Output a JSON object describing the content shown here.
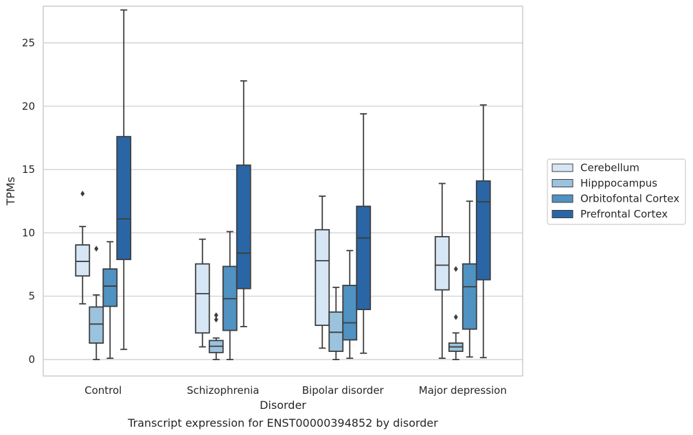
{
  "chart_data": {
    "type": "box",
    "title": "",
    "caption": "Transcript expression for ENST00000394852 by disorder",
    "xlabel": "Disorder",
    "ylabel": "TPMs",
    "ylim": [
      -1.3,
      27.9
    ],
    "yticks": [
      0,
      5,
      10,
      15,
      20,
      25
    ],
    "grid": "horizontal",
    "legend_position": "right",
    "categories": [
      "Control",
      "Schizophrenia",
      "Bipolar disorder",
      "Major depression"
    ],
    "series": [
      {
        "name": "Cerebellum",
        "color": "#d6e6f4",
        "boxes": [
          {
            "whisker_low": 4.4,
            "q1": 6.6,
            "median": 7.75,
            "q3": 9.05,
            "whisker_high": 10.5,
            "outliers": [
              13.1
            ]
          },
          {
            "whisker_low": 1.0,
            "q1": 2.1,
            "median": 5.2,
            "q3": 7.55,
            "whisker_high": 9.5,
            "outliers": []
          },
          {
            "whisker_low": 0.9,
            "q1": 2.7,
            "median": 7.8,
            "q3": 10.25,
            "whisker_high": 12.9,
            "outliers": []
          },
          {
            "whisker_low": 0.1,
            "q1": 5.5,
            "median": 7.45,
            "q3": 9.7,
            "whisker_high": 13.9,
            "outliers": []
          }
        ]
      },
      {
        "name": "Hipppocampus",
        "color": "#9cc3de",
        "boxes": [
          {
            "whisker_low": 0.0,
            "q1": 1.3,
            "median": 2.8,
            "q3": 4.15,
            "whisker_high": 5.1,
            "outliers": [
              8.75
            ]
          },
          {
            "whisker_low": 0.0,
            "q1": 0.55,
            "median": 1.05,
            "q3": 1.5,
            "whisker_high": 1.7,
            "outliers": [
              3.15,
              3.5
            ]
          },
          {
            "whisker_low": 0.0,
            "q1": 0.65,
            "median": 2.15,
            "q3": 3.75,
            "whisker_high": 5.7,
            "outliers": []
          },
          {
            "whisker_low": 0.0,
            "q1": 0.65,
            "median": 1.0,
            "q3": 1.3,
            "whisker_high": 2.1,
            "outliers": [
              3.35,
              7.15
            ]
          }
        ]
      },
      {
        "name": "Orbitofontal Cortex",
        "color": "#5092c2",
        "boxes": [
          {
            "whisker_low": 0.1,
            "q1": 4.2,
            "median": 5.8,
            "q3": 7.15,
            "whisker_high": 9.3,
            "outliers": []
          },
          {
            "whisker_low": 0.0,
            "q1": 2.3,
            "median": 4.8,
            "q3": 7.35,
            "whisker_high": 10.1,
            "outliers": []
          },
          {
            "whisker_low": 0.1,
            "q1": 1.55,
            "median": 2.9,
            "q3": 5.85,
            "whisker_high": 8.6,
            "outliers": []
          },
          {
            "whisker_low": 0.2,
            "q1": 2.4,
            "median": 5.75,
            "q3": 7.55,
            "whisker_high": 12.5,
            "outliers": []
          }
        ]
      },
      {
        "name": "Prefrontal Cortex",
        "color": "#2a66a5",
        "boxes": [
          {
            "whisker_low": 0.8,
            "q1": 7.9,
            "median": 11.1,
            "q3": 17.6,
            "whisker_high": 27.6,
            "outliers": []
          },
          {
            "whisker_low": 2.6,
            "q1": 5.6,
            "median": 8.4,
            "q3": 15.35,
            "whisker_high": 22.0,
            "outliers": []
          },
          {
            "whisker_low": 0.5,
            "q1": 3.95,
            "median": 9.6,
            "q3": 12.1,
            "whisker_high": 19.4,
            "outliers": []
          },
          {
            "whisker_low": 0.15,
            "q1": 6.3,
            "median": 12.45,
            "q3": 14.1,
            "whisker_high": 20.1,
            "outliers": []
          }
        ]
      }
    ]
  }
}
